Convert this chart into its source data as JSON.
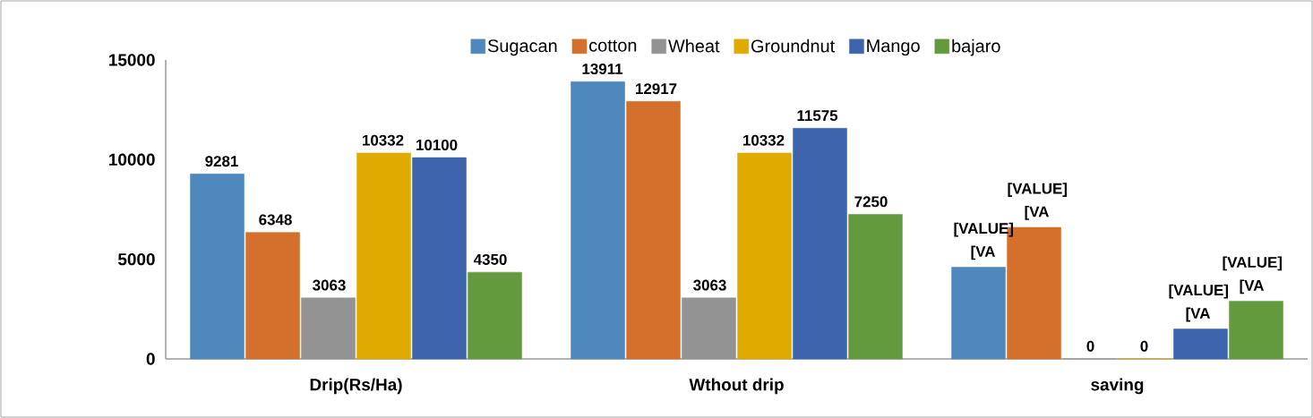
{
  "chart_data": {
    "type": "bar",
    "categories": [
      "Drip(Rs/Ha)",
      "Wthout drip",
      "saving"
    ],
    "series": [
      {
        "name": "Sugacan",
        "color": "#4f88bd",
        "values": [
          9281,
          13911,
          4600
        ],
        "value_labels": [
          "9281",
          "13911",
          "[VALUE] [VA"
        ]
      },
      {
        "name": "cotton",
        "color": "#d46f2c",
        "values": [
          6348,
          12917,
          6600
        ],
        "value_labels": [
          "6348",
          "12917",
          "[VALUE] [VA"
        ]
      },
      {
        "name": "Wheat",
        "color": "#939393",
        "values": [
          3063,
          3063,
          0
        ],
        "value_labels": [
          "3063",
          "3063",
          "0"
        ]
      },
      {
        "name": "Groundnut",
        "color": "#e1aa00",
        "values": [
          10332,
          10332,
          0
        ],
        "value_labels": [
          "10332",
          "10332",
          "0"
        ]
      },
      {
        "name": "Mango",
        "color": "#3d64ad",
        "values": [
          10100,
          11575,
          1500
        ],
        "value_labels": [
          "10100",
          "11575",
          "[VALUE] [VA"
        ]
      },
      {
        "name": "bajaro",
        "color": "#649a3e",
        "values": [
          4350,
          7250,
          2900
        ],
        "value_labels": [
          "4350",
          "7250",
          "[VALUE] [VA"
        ]
      }
    ],
    "ylim": [
      0,
      15000
    ],
    "yticks": [
      0,
      5000,
      10000,
      15000
    ],
    "grid": false,
    "legend": "top"
  }
}
